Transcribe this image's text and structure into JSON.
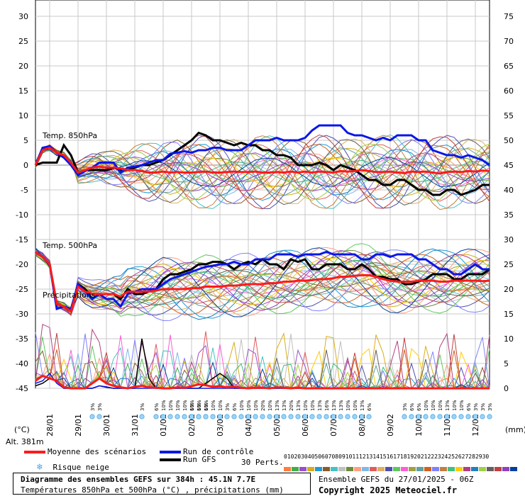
{
  "chart_data": {
    "type": "line",
    "title": "Diagramme des ensembles GEFS sur 384h : 45.1N 7.7E",
    "subtitle": "Températures 850hPa et 500hPa (°C) , précipitations (mm)",
    "left_axis": {
      "unit": "(°C)",
      "ticks": [
        30,
        25,
        20,
        15,
        10,
        5,
        0,
        -5,
        -10,
        -15,
        -20,
        -25,
        -30,
        -35,
        -40,
        -45
      ],
      "range": [
        -45,
        30
      ]
    },
    "right_axis": {
      "unit": "(mm)",
      "ticks": [
        75,
        70,
        65,
        60,
        55,
        50,
        45,
        40,
        35,
        30,
        25,
        20,
        15,
        10,
        5,
        0
      ],
      "range": [
        0,
        75
      ]
    },
    "x_ticks": [
      "28/01",
      "29/01",
      "30/01",
      "31/01",
      "01/02",
      "02/02",
      "03/02",
      "04/02",
      "05/02",
      "06/02",
      "07/02",
      "08/02",
      "09/02",
      "10/02",
      "11/02",
      "12/02"
    ],
    "panel_labels": {
      "t850": "Temp. 850hPa",
      "t500": "Temp. 500hPa",
      "precip": "Précipitations"
    },
    "altitude": "Alt. 381m",
    "series": [
      {
        "name": "Moyenne des scénarios",
        "color": "#ff1a1a",
        "t850": [
          0,
          3,
          3.5,
          2.5,
          2,
          0.5,
          -1.5,
          -1,
          -0.5,
          -0.3,
          -0.5,
          -0.5,
          -0.7,
          -1,
          -1,
          -1.2,
          -1.5,
          -1.5,
          -1.3,
          -1.5,
          -1.4,
          -1.5,
          -1.5,
          -1.4,
          -1.3,
          -1.5,
          -1.5,
          -1.4,
          -1.3,
          -1.4,
          -1.4,
          -1.3,
          -1.5,
          -1.5,
          -1.4,
          -1.5,
          -1.3,
          -1.5,
          -1.3,
          -1.5,
          -1.3,
          -1.4,
          -1.5,
          -1.2,
          -1.3,
          -1.2,
          -1,
          -1.2,
          -1.4,
          -1.4,
          -1.3,
          -1.5,
          -1.6,
          -1.3,
          -1.4,
          -1.3,
          -1.5,
          -1.7,
          -1.4,
          -1.3,
          -1.4,
          -1.2,
          -1.3,
          -1.1,
          -1.2
        ],
        "t500": [
          -17.5,
          -18.5,
          -20,
          -28,
          -28.5,
          -29.5,
          -24.5,
          -25.5,
          -26,
          -26,
          -26,
          -26,
          -26.5,
          -25.5,
          -25.5,
          -25.5,
          -25.5,
          -25.3,
          -25,
          -25,
          -25,
          -25,
          -24.8,
          -24.8,
          -24.5,
          -24.5,
          -24.5,
          -24.3,
          -24.3,
          -24.2,
          -24,
          -24,
          -24,
          -23.8,
          -23.8,
          -23.5,
          -23.5,
          -23.3,
          -23.3,
          -23.2,
          -23,
          -23,
          -22.8,
          -22.5,
          -22.5,
          -22.3,
          -22.2,
          -22.2,
          -22.5,
          -23,
          -23.3,
          -23.5,
          -23.5,
          -23.5,
          -23.3,
          -23.3,
          -23.3,
          -23.5,
          -23.5,
          -23.3,
          -23.3,
          -23.3,
          -23.3,
          -23.4,
          -23.3
        ],
        "precip": [
          1.5,
          2.5,
          2,
          1.5,
          0.2,
          0,
          0,
          0,
          1,
          2,
          1,
          0.5,
          0.2,
          0,
          0.3,
          0.5,
          0.2,
          0.1,
          0,
          0,
          0.2,
          0.1,
          0.4,
          0.8,
          0.6,
          0.3,
          0.4,
          0.2,
          0.3,
          0.1,
          0,
          0.1,
          0.1,
          0,
          0.2,
          0.1,
          0,
          0.1,
          0,
          0,
          0,
          0,
          0,
          0,
          0,
          0,
          0,
          0,
          0,
          0,
          0,
          0,
          0,
          0,
          0,
          0,
          0,
          0,
          0,
          0,
          0,
          0,
          0,
          0,
          0
        ]
      },
      {
        "name": "Run de contrôle",
        "color": "#0a16e8",
        "t850": [
          0,
          3.5,
          3.8,
          2.5,
          1.5,
          0,
          -2,
          -1.2,
          -0.5,
          0.5,
          0.5,
          0.5,
          -1.5,
          -0.5,
          -0.3,
          0,
          0.5,
          1,
          1,
          2.3,
          2.5,
          2.8,
          2.5,
          3,
          3,
          3.5,
          3.5,
          3,
          3,
          3,
          4,
          5,
          5,
          5,
          5.5,
          5,
          5,
          5,
          5.5,
          7,
          8,
          8,
          8,
          8,
          6.5,
          6,
          6,
          5.5,
          5,
          5.5,
          5,
          6,
          6,
          6,
          5,
          5,
          3,
          2.5,
          2,
          2,
          1.5,
          2,
          1.5,
          1,
          0
        ],
        "t500": [
          -17.5,
          -18.5,
          -20,
          -29,
          -28.5,
          -29,
          -24,
          -25.5,
          -27,
          -26,
          -27,
          -27,
          -28.5,
          -26,
          -25.5,
          -25,
          -25,
          -25,
          -24,
          -23,
          -22.5,
          -22,
          -21.5,
          -21,
          -20.5,
          -20.3,
          -20,
          -20,
          -19.5,
          -20,
          -20,
          -19,
          -19,
          -19,
          -18,
          -18,
          -18,
          -18.5,
          -18,
          -18,
          -18,
          -17.5,
          -18,
          -18,
          -18,
          -18,
          -19,
          -19,
          -18,
          -18,
          -18.5,
          -18,
          -18,
          -18,
          -19,
          -19,
          -20,
          -21,
          -21,
          -22,
          -22,
          -21,
          -20,
          -21,
          -21
        ],
        "precip": [
          1,
          1.5,
          3,
          1,
          0,
          0,
          0,
          0,
          0,
          0.5,
          0.3,
          0,
          0,
          0,
          0,
          0,
          0,
          0,
          0,
          0,
          0,
          0,
          0,
          0,
          0,
          0,
          0,
          0,
          0,
          0,
          0,
          0,
          0,
          0,
          0,
          0,
          0,
          0,
          0,
          0,
          0,
          0,
          0,
          0,
          0,
          0,
          0,
          0,
          0,
          0,
          0,
          0,
          0,
          0,
          0,
          0,
          0,
          0,
          0,
          0,
          0,
          0,
          0,
          0,
          0
        ]
      },
      {
        "name": "Run GFS",
        "color": "#000000",
        "t850": [
          0,
          0.5,
          0.5,
          0.5,
          4,
          2,
          -1.5,
          -1,
          -1,
          -1,
          -1,
          -0.5,
          -1,
          -1,
          -0.5,
          0,
          0,
          0.5,
          1,
          2,
          3,
          4,
          5,
          6.5,
          6,
          5,
          5,
          4.5,
          4,
          4.5,
          4,
          4,
          3,
          3,
          2,
          2,
          1.5,
          0,
          0,
          0,
          0.5,
          0,
          -1,
          0,
          -0.5,
          -1,
          -2,
          -3,
          -3,
          -4,
          -4,
          -3,
          -3,
          -4,
          -5,
          -5,
          -6,
          -6,
          -5,
          -5,
          -6,
          -5.5,
          -5,
          -4,
          -4
        ],
        "t500": [
          -17.5,
          -18.5,
          -20,
          -28,
          -28.5,
          -29.5,
          -24,
          -25,
          -27,
          -26,
          -26,
          -26,
          -27,
          -25,
          -26,
          -26,
          -25.5,
          -25,
          -23,
          -22,
          -22,
          -21.5,
          -21,
          -20,
          -20,
          -19.5,
          -19.5,
          -20,
          -21,
          -20,
          -19.5,
          -20,
          -19,
          -20,
          -20,
          -21,
          -19,
          -19.5,
          -19,
          -21,
          -21,
          -20,
          -20,
          -20,
          -21,
          -21,
          -20,
          -21,
          -22.5,
          -22.5,
          -23,
          -23,
          -24,
          -24,
          -23.5,
          -23,
          -22,
          -22,
          -22,
          -23,
          -23,
          -22,
          -22,
          -22,
          -21
        ],
        "precip": [
          0.5,
          1,
          2,
          1.5,
          0,
          0,
          0,
          0,
          0,
          0.5,
          0.2,
          0,
          0,
          0,
          0,
          10,
          2,
          0,
          0,
          0,
          0,
          0,
          0,
          0,
          1,
          2,
          3,
          2,
          0,
          0,
          0,
          0,
          0,
          0,
          0,
          0,
          0,
          0,
          0,
          0,
          0,
          0,
          0,
          0,
          0,
          0,
          0,
          0,
          0,
          0,
          0,
          0,
          0,
          0,
          0,
          0,
          0,
          0,
          0,
          0,
          0,
          0,
          0,
          0,
          0
        ]
      }
    ],
    "snow_risk": [
      {
        "day_index": 8,
        "labels": [
          "3%",
          "3%"
        ]
      },
      {
        "day_index": 15,
        "labels": [
          "3%"
        ]
      },
      {
        "day_index": 17,
        "labels": [
          "6%",
          "10%",
          "10%",
          "10%",
          "10%",
          "10%",
          "10%",
          "6%"
        ]
      },
      {
        "day_index": 22,
        "labels": [
          "6%",
          "6%",
          "10%",
          "10%",
          "10%",
          "3%",
          "6%",
          "10%",
          "10%",
          "10%",
          "20%",
          "10%",
          "13%",
          "13%",
          "20%",
          "13%",
          "10%",
          "10%",
          "13%",
          "16%",
          "13%",
          "13%",
          "10%",
          "10%",
          "13%",
          "6%"
        ]
      },
      {
        "day_index": 52,
        "labels": [
          "3%",
          "6%",
          "6%",
          "10%",
          "10%",
          "10%",
          "13%",
          "10%",
          "10%",
          "6%",
          "3%",
          "3%",
          "3%",
          "10%"
        ]
      }
    ],
    "legend": {
      "mean_label": "Moyenne des scénarios",
      "control_label": "Run de contrôle",
      "gfs_label": "Run GFS",
      "snow_label": "Risque neige",
      "perts_label": "30 Perts.",
      "perts_numbers": [
        "01",
        "02",
        "03",
        "04",
        "05",
        "06",
        "07",
        "08",
        "09",
        "10",
        "11",
        "12",
        "13",
        "14",
        "15",
        "16",
        "17",
        "18",
        "19",
        "20",
        "21",
        "22",
        "23",
        "24",
        "25",
        "26",
        "27",
        "28",
        "29",
        "30"
      ],
      "perts_colors": [
        "#ff7e3a",
        "#3fae49",
        "#9b4cd0",
        "#d8ad17",
        "#1f9bd5",
        "#8b5a2b",
        "#45c2c2",
        "#c0c0c0",
        "#6e8b3d",
        "#ff9f80",
        "#7fb8e8",
        "#e05c5c",
        "#e0b060",
        "#4f4fb0",
        "#5cc85c",
        "#ff5cd9",
        "#a0a040",
        "#60a0a0",
        "#d06020",
        "#8080ff",
        "#c08040",
        "#40c080",
        "#ffcc00",
        "#b04080",
        "#2080c0",
        "#a0d040",
        "#606060",
        "#c04040",
        "#9040c0",
        "#0040a0"
      ]
    },
    "footer": {
      "line1": "Diagramme des ensembles GEFS sur 384h : 45.1N 7.7E",
      "line2": "Températures 850hPa et 500hPa (°C) , précipitations (mm)",
      "run": "Ensemble GEFS du 27/01/2025 - 06Z",
      "copyright": "Copyright 2025 Meteociel.fr"
    }
  }
}
